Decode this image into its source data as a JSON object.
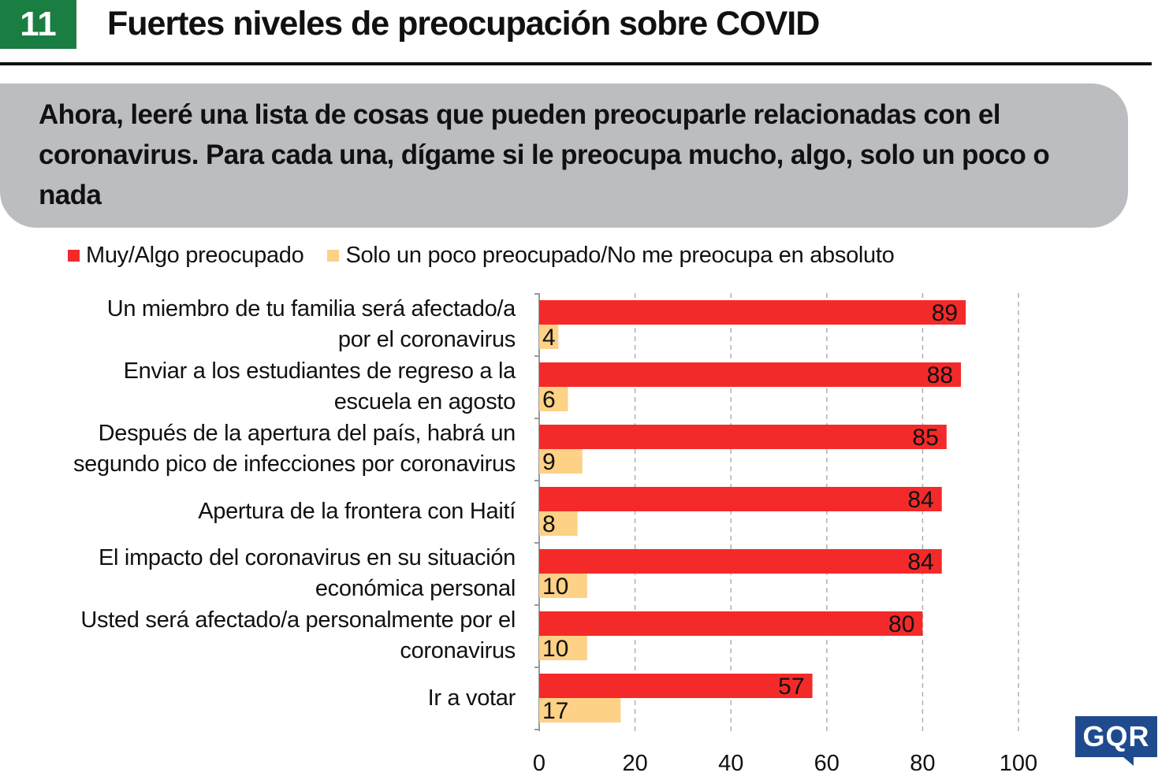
{
  "header": {
    "number": "11",
    "title": "Fuertes niveles de preocupación sobre COVID"
  },
  "question": "Ahora, leeré una lista de cosas que pueden preocuparle relacionadas con el coronavirus. Para cada una, dígame si le preocupa mucho, algo, solo un poco o nada",
  "logo_text": "GQR",
  "colors": {
    "badge": "#1a7d41",
    "series_1": "#f42a2a",
    "series_2": "#fdd186",
    "logo": "#1f4b8e",
    "question_box": "#bcbdc0"
  },
  "chart_data": {
    "type": "bar",
    "orientation": "horizontal",
    "categories": [
      [
        "Un miembro de tu familia será afectado/a",
        "por el coronavirus"
      ],
      [
        "Enviar a los estudiantes de regreso a la",
        "escuela en agosto"
      ],
      [
        "Después de la apertura del país, habrá un",
        "segundo pico de infecciones por coronavirus"
      ],
      [
        "Apertura de la frontera con Haití"
      ],
      [
        "El impacto del coronavirus en su situación",
        "económica personal"
      ],
      [
        "Usted será afectado/a personalmente por el",
        "coronavirus"
      ],
      [
        "Ir a votar"
      ]
    ],
    "series": [
      {
        "name": "Muy/Algo preocupado",
        "color": "#f42a2a",
        "values": [
          89,
          88,
          85,
          84,
          84,
          80,
          57
        ]
      },
      {
        "name": "Solo un poco preocupado/No me preocupa en absoluto",
        "color": "#fdd186",
        "values": [
          4,
          6,
          9,
          8,
          10,
          10,
          17
        ]
      }
    ],
    "xlim": [
      0,
      100
    ],
    "xticks": [
      "0",
      "20",
      "40",
      "60",
      "80",
      "100"
    ],
    "grid": true,
    "grid_style": "dashed-vertical",
    "legend_position": "top"
  }
}
